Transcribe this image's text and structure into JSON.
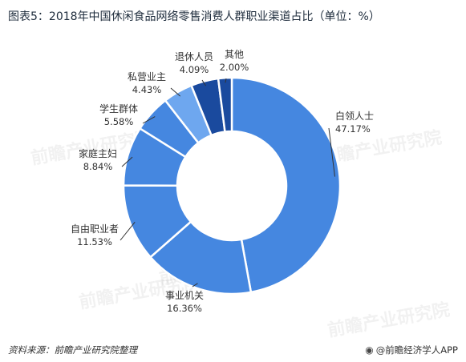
{
  "title": "图表5：2018年中国休闲食品网络零售消费人群职业渠道占比（单位：%）",
  "footer": {
    "source": "资料来源：前瞻产业研究院整理",
    "brand": "@前瞻经济学人APP"
  },
  "watermark_text": "前瞻产业研究院",
  "chart_data": {
    "type": "pie",
    "donut": true,
    "slices": [
      {
        "label": "白领人士",
        "value": 47.17,
        "value_label": "47.17%",
        "color": "#4587e0"
      },
      {
        "label": "事业机关",
        "value": 16.36,
        "value_label": "16.36%",
        "color": "#4587e0"
      },
      {
        "label": "自由职业者",
        "value": 11.53,
        "value_label": "11.53%",
        "color": "#4587e0"
      },
      {
        "label": "家庭主妇",
        "value": 8.84,
        "value_label": "8.84%",
        "color": "#4587e0"
      },
      {
        "label": "学生群体",
        "value": 5.58,
        "value_label": "5.58%",
        "color": "#4587e0"
      },
      {
        "label": "私营业主",
        "value": 4.43,
        "value_label": "4.43%",
        "color": "#6ea7ef"
      },
      {
        "label": "退休人员",
        "value": 4.09,
        "value_label": "4.09%",
        "color": "#1a4a9e"
      },
      {
        "label": "其他",
        "value": 2.0,
        "value_label": "2.00%",
        "color": "#1a4a9e"
      }
    ]
  }
}
